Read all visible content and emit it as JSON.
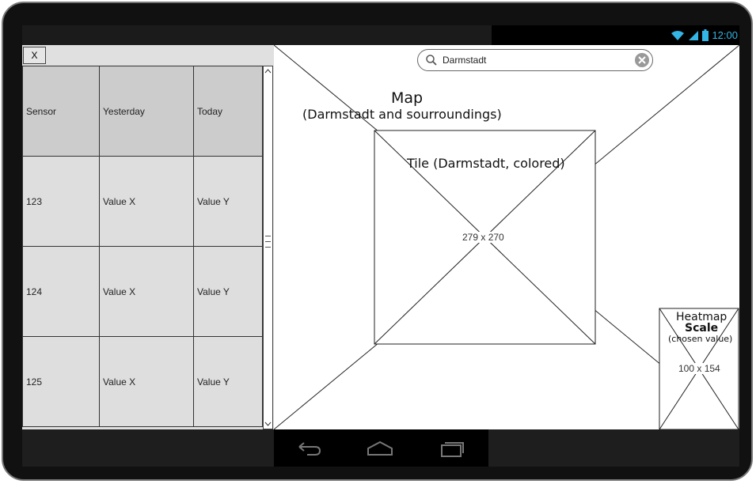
{
  "status_bar": {
    "time": "12:00",
    "icons": [
      "wifi-icon",
      "signal-icon",
      "battery-icon"
    ],
    "icon_color": "#33b5e5"
  },
  "left_panel": {
    "close_label": "X",
    "table": {
      "headers": [
        "Sensor",
        "Yesterday",
        "Today"
      ],
      "rows": [
        [
          "123",
          "Value X",
          "Value Y"
        ],
        [
          "124",
          "Value X",
          "Value Y"
        ],
        [
          "125",
          "Value X",
          "Value Y"
        ]
      ]
    },
    "scroll_icons": [
      "scroll-up-icon",
      "scroll-grip-icon",
      "scroll-down-icon"
    ]
  },
  "map": {
    "search": {
      "value": "Darmstadt",
      "icons": [
        "search-icon",
        "clear-icon"
      ]
    },
    "title": "Map",
    "subtitle": "(Darmstadt and sourroundings)",
    "tile": {
      "title": "Tile (Darmstadt, colored)",
      "size_label": "279 x 270"
    },
    "heatmap": {
      "title": "Heatmap",
      "scale": "Scale",
      "note": "(chosen value)",
      "size_label": "100 x 154"
    }
  },
  "nav_bar": {
    "icons": [
      "back-icon",
      "home-icon",
      "recent-apps-icon"
    ]
  }
}
